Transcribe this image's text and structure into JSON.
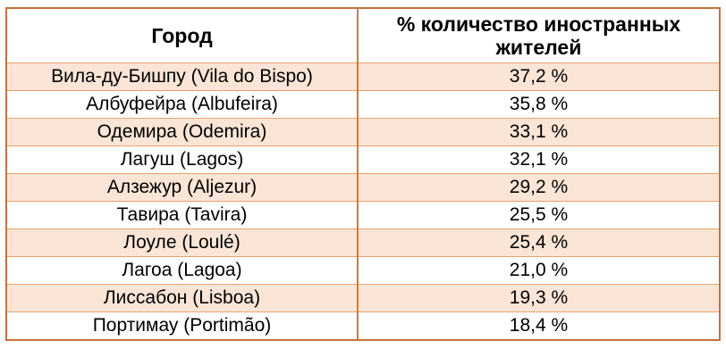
{
  "table": {
    "columns": [
      "Город",
      "% количество иностранных жителей"
    ],
    "rows": [
      {
        "city": "Вила-ду-Бишпу (Vila do Bispo)",
        "percent": "37,2 %"
      },
      {
        "city": "Албуфейра (Albufeira)",
        "percent": "35,8 %"
      },
      {
        "city": "Одемира (Odemira)",
        "percent": "33,1 %"
      },
      {
        "city": "Лагуш (Lagos)",
        "percent": "32,1 %"
      },
      {
        "city": "Алзежур (Aljezur)",
        "percent": "29,2 %"
      },
      {
        "city": "Тавира (Tavira)",
        "percent": "25,5 %"
      },
      {
        "city": "Лоуле (Loulé)",
        "percent": "25,4 %"
      },
      {
        "city": "Лагоа (Lagoa)",
        "percent": "21,0 %"
      },
      {
        "city": "Лиссабон (Lisboa)",
        "percent": "19,3 %"
      },
      {
        "city": "Портимау (Portimão)",
        "percent": "18,4 %"
      }
    ]
  },
  "chart_data": {
    "type": "table",
    "columns": [
      "Город",
      "% количество иностранных жителей"
    ],
    "rows": [
      [
        "Вила-ду-Бишпу (Vila do Bispo)",
        37.2
      ],
      [
        "Албуфейра (Albufeira)",
        35.8
      ],
      [
        "Одемира (Odemira)",
        33.1
      ],
      [
        "Лагуш (Lagos)",
        32.1
      ],
      [
        "Алзежур (Aljezur)",
        29.2
      ],
      [
        "Тавира (Tavira)",
        25.5
      ],
      [
        "Лоуле (Loulé)",
        25.4
      ],
      [
        "Лагоа (Lagoa)",
        21.0
      ],
      [
        "Лиссабон (Lisboa)",
        19.3
      ],
      [
        "Портимау (Portimão)",
        18.4
      ]
    ],
    "value_format": "decimal comma, suffix \" %\"",
    "layout": "alternating row shading, shaded first data row, all cells centered"
  },
  "colors": {
    "outer_border": "#c4713b",
    "divider": "#d17a3c",
    "separator": "#e6a372",
    "shade": "#fbe5d6",
    "text": "#000000",
    "background": "#ffffff"
  }
}
